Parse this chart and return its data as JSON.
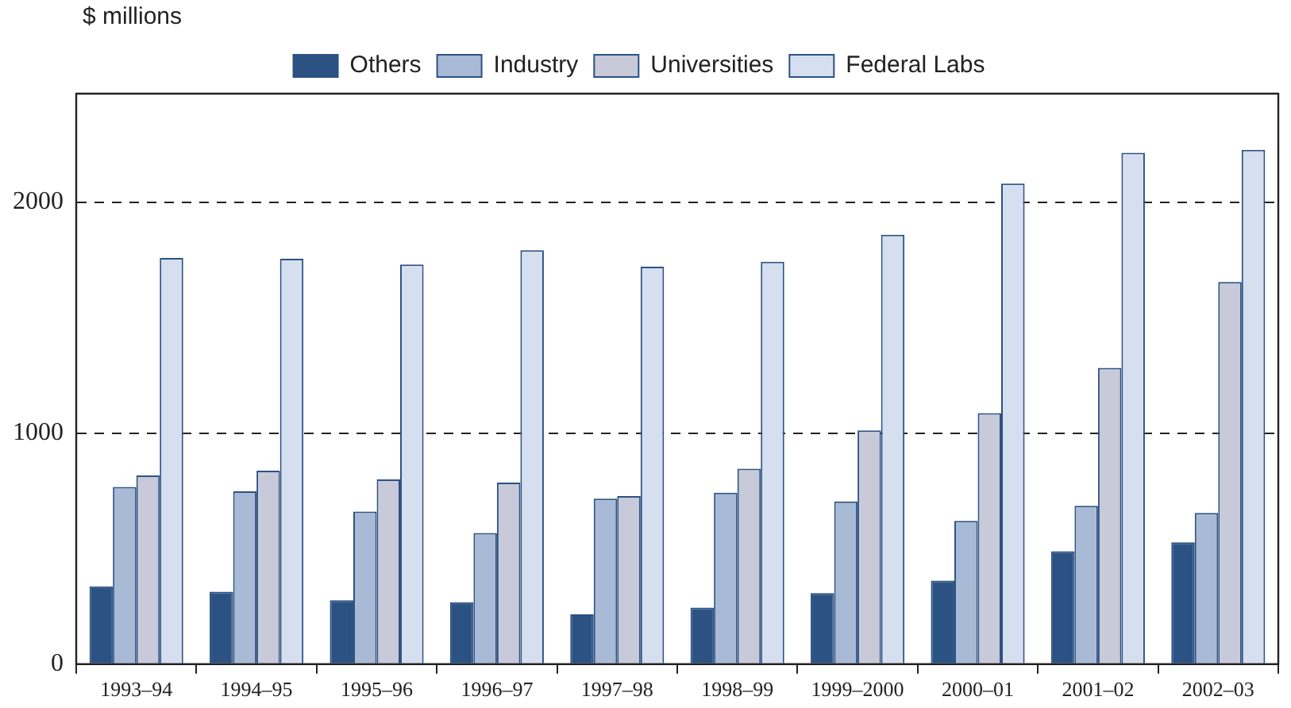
{
  "chart_data": {
    "type": "bar",
    "ylabel": "$ millions",
    "categories": [
      "1993–94",
      "1994–95",
      "1995–96",
      "1996–97",
      "1997–98",
      "1998–99",
      "1999–2000",
      "2000–01",
      "2001–02",
      "2002–03"
    ],
    "series": [
      {
        "name": "Others",
        "color": "#2b5283",
        "values": [
          337,
          314,
          277,
          268,
          216,
          245,
          308,
          362,
          489,
          528
        ]
      },
      {
        "name": "Industry",
        "color": "#a9bad6",
        "values": [
          767,
          748,
          661,
          568,
          717,
          742,
          705,
          620,
          686,
          655
        ]
      },
      {
        "name": "Universities",
        "color": "#c8c9d9",
        "values": [
          817,
          838,
          800,
          786,
          728,
          846,
          1012,
          1087,
          1283,
          1655
        ]
      },
      {
        "name": "Federal Labs",
        "color": "#d6dff0",
        "values": [
          1759,
          1755,
          1730,
          1792,
          1721,
          1742,
          1859,
          2081,
          2214,
          2227
        ]
      }
    ],
    "ylim": [
      0,
      2470
    ],
    "yticks": [
      0,
      1000,
      2000
    ],
    "grid": "y",
    "legend": "top"
  }
}
